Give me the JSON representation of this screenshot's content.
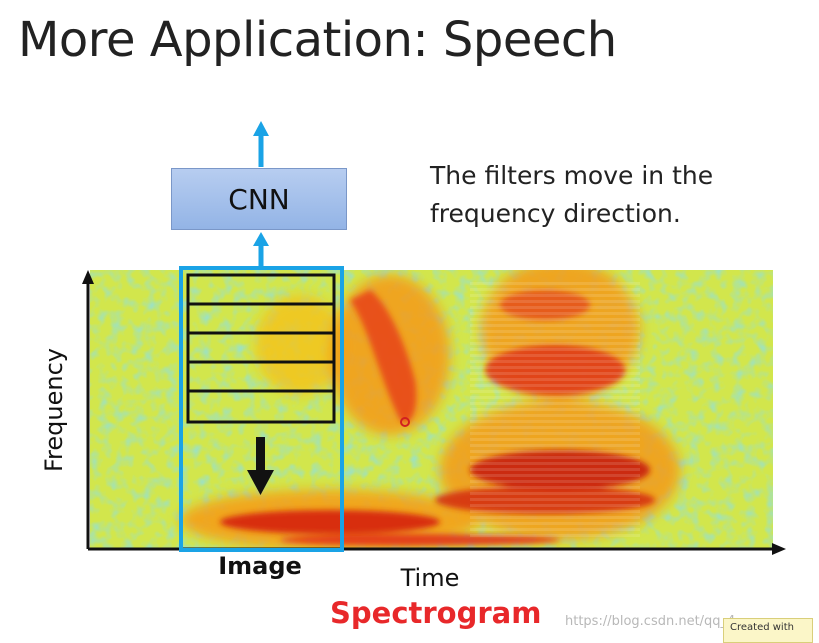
{
  "title": "More Application: Speech",
  "cnn_label": "CNN",
  "note": "The filters move in the frequency direction.",
  "image_label": "Image",
  "x_axis_label": "Time",
  "y_axis_label": "Frequency",
  "spectrogram_label": "Spectrogram",
  "watermark": "https://blog.csdn.net/qq_4...",
  "badge": "Created with",
  "colors": {
    "frame": "#1aa3e6",
    "cnn_fill": "#a7c2ec",
    "label_red": "#e8282a",
    "spectrogram_base": "#cfe44a"
  }
}
